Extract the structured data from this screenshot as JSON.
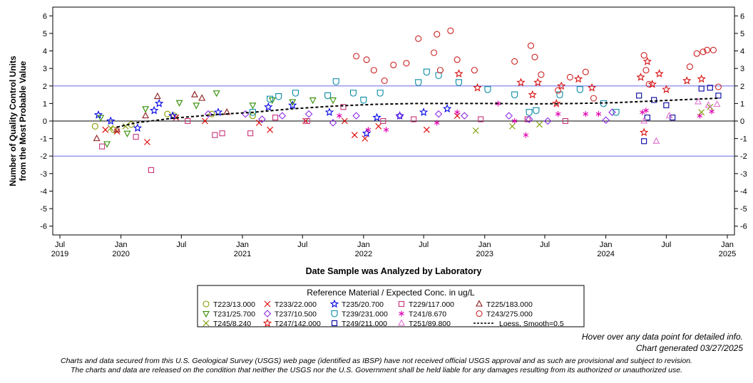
{
  "chart_data": {
    "type": "scatter",
    "title": "",
    "xlabel": "Date Sample was Analyzed by Laboratory",
    "ylabel_lines": [
      "Number of Quality Control Units",
      "from the Most Probable Value"
    ],
    "xlim": [
      "2019-07-01",
      "2025-01-01"
    ],
    "ylim": [
      -6.5,
      6.5
    ],
    "y_ticks": [
      -6,
      -5,
      -4,
      -3,
      -2,
      -1,
      0,
      1,
      2,
      3,
      4,
      5,
      6
    ],
    "x_ticks": [
      {
        "date": "2019-07-01",
        "label": "Jul",
        "year": "2019"
      },
      {
        "date": "2020-01-01",
        "label": "Jan",
        "year": "2020"
      },
      {
        "date": "2020-07-01",
        "label": "Jul",
        "year": ""
      },
      {
        "date": "2021-01-01",
        "label": "Jan",
        "year": "2021"
      },
      {
        "date": "2021-07-01",
        "label": "Jul",
        "year": ""
      },
      {
        "date": "2022-01-01",
        "label": "Jan",
        "year": "2022"
      },
      {
        "date": "2022-07-01",
        "label": "Jul",
        "year": ""
      },
      {
        "date": "2023-01-01",
        "label": "Jan",
        "year": "2023"
      },
      {
        "date": "2023-07-01",
        "label": "Jul",
        "year": ""
      },
      {
        "date": "2024-01-01",
        "label": "Jan",
        "year": "2024"
      },
      {
        "date": "2024-07-01",
        "label": "Jul",
        "year": ""
      },
      {
        "date": "2025-01-01",
        "label": "Jan",
        "year": "2025"
      }
    ],
    "reference_lines": [
      {
        "y": 2,
        "color": "#6a6ae8"
      },
      {
        "y": 0,
        "color": "#000000"
      },
      {
        "y": -2,
        "color": "#6a6ae8"
      }
    ],
    "grid": false,
    "legend_position": "bottom",
    "legend_title": "Reference Material / Expected Conc. in ug/L",
    "series": [
      {
        "name": "T223/13.000",
        "marker": "circle",
        "color": "#8a9a00",
        "points": [
          [
            "2019-10-15",
            -0.3
          ],
          [
            "2019-12-10",
            -0.5
          ],
          [
            "2020-02-01",
            -0.2
          ],
          [
            "2020-05-20",
            0.4
          ],
          [
            "2020-06-10",
            0.3
          ],
          [
            "2020-10-01",
            0.4
          ],
          [
            "2021-02-01",
            0.3
          ]
        ]
      },
      {
        "name": "T233/22.000",
        "marker": "x",
        "color": "#e00000",
        "points": [
          [
            "2019-11-15",
            -0.5
          ],
          [
            "2019-12-20",
            -0.6
          ],
          [
            "2020-03-20",
            -1.2
          ],
          [
            "2020-06-15",
            0.2
          ],
          [
            "2020-09-10",
            0.0
          ],
          [
            "2021-02-20",
            -0.1
          ],
          [
            "2021-03-25",
            -0.5
          ],
          [
            "2021-07-10",
            0.0
          ],
          [
            "2021-11-05",
            0.0
          ],
          [
            "2021-12-05",
            -0.8
          ],
          [
            "2022-01-05",
            -1.0
          ],
          [
            "2022-02-15",
            -0.3
          ],
          [
            "2022-07-10",
            -0.5
          ],
          [
            "2022-10-10",
            0.3
          ]
        ]
      },
      {
        "name": "T235/20.700",
        "marker": "star",
        "color": "#0000e8",
        "points": [
          [
            "2019-10-25",
            0.35
          ],
          [
            "2019-12-01",
            0.0
          ],
          [
            "2020-02-20",
            -0.4
          ],
          [
            "2020-04-10",
            0.6
          ],
          [
            "2020-04-25",
            1.0
          ],
          [
            "2020-06-05",
            0.3
          ],
          [
            "2020-10-20",
            0.5
          ],
          [
            "2021-03-20",
            0.8
          ],
          [
            "2021-06-01",
            0.9
          ],
          [
            "2021-09-20",
            0.5
          ],
          [
            "2022-01-10",
            -0.7
          ],
          [
            "2022-02-10",
            0.2
          ],
          [
            "2022-04-20",
            0.3
          ],
          [
            "2022-07-01",
            0.5
          ],
          [
            "2022-09-10",
            0.7
          ]
        ]
      },
      {
        "name": "T229/117.000",
        "marker": "square",
        "color": "#c8327a",
        "points": [
          [
            "2019-11-05",
            -1.45
          ],
          [
            "2020-02-15",
            -0.9
          ],
          [
            "2020-04-01",
            -2.8
          ],
          [
            "2020-07-20",
            0.0
          ],
          [
            "2020-10-10",
            -0.8
          ],
          [
            "2020-11-01",
            -0.7
          ],
          [
            "2021-01-25",
            -0.7
          ],
          [
            "2021-04-10",
            0.2
          ],
          [
            "2021-07-15",
            0.0
          ],
          [
            "2021-11-01",
            0.8
          ],
          [
            "2022-03-01",
            0.0
          ],
          [
            "2022-06-01",
            0.1
          ],
          [
            "2022-12-20",
            0.1
          ],
          [
            "2023-05-10",
            0.1
          ],
          [
            "2023-09-01",
            0.0
          ]
        ]
      },
      {
        "name": "T225/183.000",
        "marker": "triangle",
        "color": "#8b1a1a",
        "points": [
          [
            "2019-10-20",
            -1.0
          ],
          [
            "2019-12-20",
            -0.5
          ],
          [
            "2020-03-15",
            0.3
          ],
          [
            "2020-04-20",
            1.4
          ],
          [
            "2020-08-10",
            1.5
          ],
          [
            "2020-09-01",
            1.3
          ],
          [
            "2020-11-15",
            0.5
          ]
        ]
      },
      {
        "name": "T231/25.700",
        "marker": "triangle-down",
        "color": "#2e8b00",
        "points": [
          [
            "2019-11-01",
            0.2
          ],
          [
            "2019-11-20",
            -1.3
          ],
          [
            "2020-01-20",
            -0.7
          ],
          [
            "2020-03-15",
            0.7
          ],
          [
            "2020-06-25",
            1.05
          ],
          [
            "2020-08-15",
            0.9
          ],
          [
            "2020-10-15",
            1.6
          ],
          [
            "2021-02-01",
            0.9
          ],
          [
            "2021-04-01",
            1.2
          ],
          [
            "2021-06-01",
            1.1
          ],
          [
            "2021-08-01",
            1.2
          ],
          [
            "2021-10-01",
            1.2
          ]
        ]
      },
      {
        "name": "T237/10.500",
        "marker": "diamond",
        "color": "#8a2be2",
        "points": [
          [
            "2020-09-20",
            0.4
          ],
          [
            "2021-01-10",
            0.4
          ],
          [
            "2021-03-01",
            0.1
          ],
          [
            "2021-05-01",
            0.3
          ],
          [
            "2021-07-20",
            0.4
          ],
          [
            "2021-10-01",
            -0.1
          ],
          [
            "2021-12-10",
            0.3
          ],
          [
            "2022-04-20",
            0.3
          ],
          [
            "2022-08-15",
            0.4
          ],
          [
            "2022-11-01",
            0.3
          ],
          [
            "2023-03-15",
            0.3
          ],
          [
            "2023-05-15",
            0.1
          ],
          [
            "2023-07-10",
            0.0
          ],
          [
            "2024-01-01",
            0.05
          ],
          [
            "2024-01-20",
            0.5
          ]
        ]
      },
      {
        "name": "T239/231.000",
        "marker": "shield",
        "color": "#0a8aa5",
        "points": [
          [
            "2021-02-01",
            0.5
          ],
          [
            "2021-03-25",
            1.25
          ],
          [
            "2021-04-20",
            1.4
          ],
          [
            "2021-06-10",
            1.6
          ],
          [
            "2021-09-15",
            1.45
          ],
          [
            "2021-10-10",
            2.25
          ],
          [
            "2021-12-01",
            1.6
          ],
          [
            "2022-01-01",
            1.2
          ],
          [
            "2022-02-20",
            1.6
          ],
          [
            "2022-06-15",
            2.2
          ],
          [
            "2022-07-10",
            2.8
          ],
          [
            "2022-08-15",
            2.6
          ],
          [
            "2022-10-15",
            2.2
          ],
          [
            "2023-01-10",
            1.8
          ],
          [
            "2023-04-01",
            1.5
          ],
          [
            "2023-05-15",
            0.5
          ],
          [
            "2023-06-05",
            0.6
          ],
          [
            "2023-08-15",
            1.5
          ],
          [
            "2023-10-15",
            1.8
          ],
          [
            "2023-12-25",
            1.0
          ],
          [
            "2024-02-01",
            0.5
          ]
        ]
      },
      {
        "name": "T241/8.670",
        "marker": "asterisk",
        "color": "#e000b0",
        "points": [
          [
            "2021-10-20",
            0.3
          ],
          [
            "2022-01-15",
            -0.5
          ],
          [
            "2022-03-10",
            -0.5
          ],
          [
            "2022-08-10",
            -0.1
          ],
          [
            "2022-10-10",
            0.5
          ],
          [
            "2023-02-10",
            1.0
          ],
          [
            "2023-04-01",
            0.0
          ],
          [
            "2023-05-05",
            -0.8
          ],
          [
            "2023-08-10",
            0.4
          ],
          [
            "2023-11-01",
            0.4
          ],
          [
            "2023-12-10",
            0.4
          ],
          [
            "2024-04-20",
            0.5
          ],
          [
            "2024-05-01",
            0.6
          ],
          [
            "2024-10-10",
            0.3
          ],
          [
            "2024-11-15",
            0.55
          ]
        ]
      },
      {
        "name": "T243/275.000",
        "marker": "circle",
        "color": "#cc2222",
        "points": [
          [
            "2021-12-10",
            3.7
          ],
          [
            "2022-01-10",
            3.5
          ],
          [
            "2022-02-01",
            2.9
          ],
          [
            "2022-03-05",
            2.3
          ],
          [
            "2022-04-01",
            3.2
          ],
          [
            "2022-05-10",
            3.3
          ],
          [
            "2022-06-15",
            4.7
          ],
          [
            "2022-08-01",
            3.9
          ],
          [
            "2022-08-10",
            4.95
          ],
          [
            "2022-08-20",
            2.9
          ],
          [
            "2022-09-20",
            5.15
          ],
          [
            "2022-10-10",
            3.5
          ],
          [
            "2022-12-01",
            2.9
          ],
          [
            "2023-04-01",
            3.4
          ],
          [
            "2023-05-20",
            4.3
          ],
          [
            "2023-06-01",
            3.65
          ],
          [
            "2023-06-20",
            2.65
          ],
          [
            "2023-08-10",
            1.75
          ],
          [
            "2023-09-15",
            2.5
          ],
          [
            "2023-11-01",
            2.8
          ],
          [
            "2023-11-25",
            1.3
          ],
          [
            "2024-04-25",
            3.75
          ],
          [
            "2024-05-01",
            2.9
          ],
          [
            "2024-05-10",
            2.1
          ],
          [
            "2024-09-10",
            3.1
          ],
          [
            "2024-10-01",
            3.85
          ],
          [
            "2024-10-20",
            3.95
          ],
          [
            "2024-11-01",
            4.05
          ],
          [
            "2024-11-20",
            4.05
          ],
          [
            "2024-12-05",
            1.95
          ]
        ]
      },
      {
        "name": "T245/8.240",
        "marker": "x",
        "color": "#7a9a00",
        "points": [
          [
            "2019-12-01",
            -0.4
          ],
          [
            "2020-01-15",
            -0.3
          ],
          [
            "2022-12-05",
            -0.55
          ],
          [
            "2023-03-25",
            -0.3
          ],
          [
            "2023-06-15",
            -0.2
          ],
          [
            "2024-10-15",
            0.5
          ],
          [
            "2024-11-10",
            0.8
          ]
        ]
      },
      {
        "name": "T247/142.000",
        "marker": "star",
        "color": "#d81010",
        "points": [
          [
            "2022-10-15",
            2.7
          ],
          [
            "2022-12-10",
            1.9
          ],
          [
            "2023-04-20",
            2.2
          ],
          [
            "2023-05-25",
            1.5
          ],
          [
            "2023-06-10",
            2.2
          ],
          [
            "2023-08-05",
            1.0
          ],
          [
            "2023-08-20",
            2.0
          ],
          [
            "2023-10-10",
            2.4
          ],
          [
            "2023-11-20",
            1.9
          ],
          [
            "2024-04-15",
            2.5
          ],
          [
            "2024-04-25",
            -0.65
          ],
          [
            "2024-05-05",
            3.4
          ],
          [
            "2024-05-20",
            2.1
          ],
          [
            "2024-06-10",
            2.7
          ],
          [
            "2024-07-01",
            1.8
          ],
          [
            "2024-09-01",
            2.3
          ],
          [
            "2024-10-15",
            2.4
          ]
        ]
      },
      {
        "name": "T249/211.000",
        "marker": "square",
        "color": "#0000a0",
        "points": [
          [
            "2024-04-10",
            1.45
          ],
          [
            "2024-04-25",
            -1.15
          ],
          [
            "2024-05-05",
            0.2
          ],
          [
            "2024-05-25",
            1.2
          ],
          [
            "2024-07-01",
            0.9
          ],
          [
            "2024-07-20",
            0.2
          ],
          [
            "2024-10-15",
            1.85
          ],
          [
            "2024-11-10",
            1.9
          ],
          [
            "2024-12-05",
            1.45
          ]
        ]
      },
      {
        "name": "T251/89.800",
        "marker": "triangle",
        "color": "#e070d0",
        "points": [
          [
            "2024-04-25",
            0.0
          ],
          [
            "2024-06-01",
            -1.15
          ],
          [
            "2024-07-10",
            0.3
          ],
          [
            "2024-10-05",
            1.1
          ],
          [
            "2024-11-05",
            0.9
          ],
          [
            "2024-12-01",
            0.95
          ]
        ]
      }
    ],
    "trend": {
      "name": "Loess, Smooth=0.5",
      "points": [
        [
          "2019-12-20",
          -0.35
        ],
        [
          "2020-02-15",
          -0.1
        ],
        [
          "2020-06-01",
          0.15
        ],
        [
          "2020-10-01",
          0.35
        ],
        [
          "2021-02-01",
          0.5
        ],
        [
          "2021-06-01",
          0.7
        ],
        [
          "2021-10-01",
          0.85
        ],
        [
          "2022-02-01",
          0.95
        ],
        [
          "2022-06-01",
          1.0
        ],
        [
          "2022-10-01",
          1.0
        ],
        [
          "2023-02-01",
          1.0
        ],
        [
          "2023-06-01",
          0.98
        ],
        [
          "2023-10-01",
          1.0
        ],
        [
          "2024-02-01",
          1.05
        ],
        [
          "2024-06-01",
          1.15
        ],
        [
          "2024-10-01",
          1.25
        ],
        [
          "2024-12-05",
          1.3
        ]
      ]
    }
  },
  "hover_note": "Hover over any data point for detailed info.",
  "generated_note": "Chart generated 03/27/2025",
  "disclaimer_line1": "Charts and data secured from this U.S. Geological Survey (USGS) web page (identified as IBSP) have not received official USGS approval and as such are provisional and subject to revision.",
  "disclaimer_line2": "The charts and data are released on the condition that neither the USGS nor the U.S. Government shall be held liable for any damages resulting from its authorized or unauthorized use."
}
